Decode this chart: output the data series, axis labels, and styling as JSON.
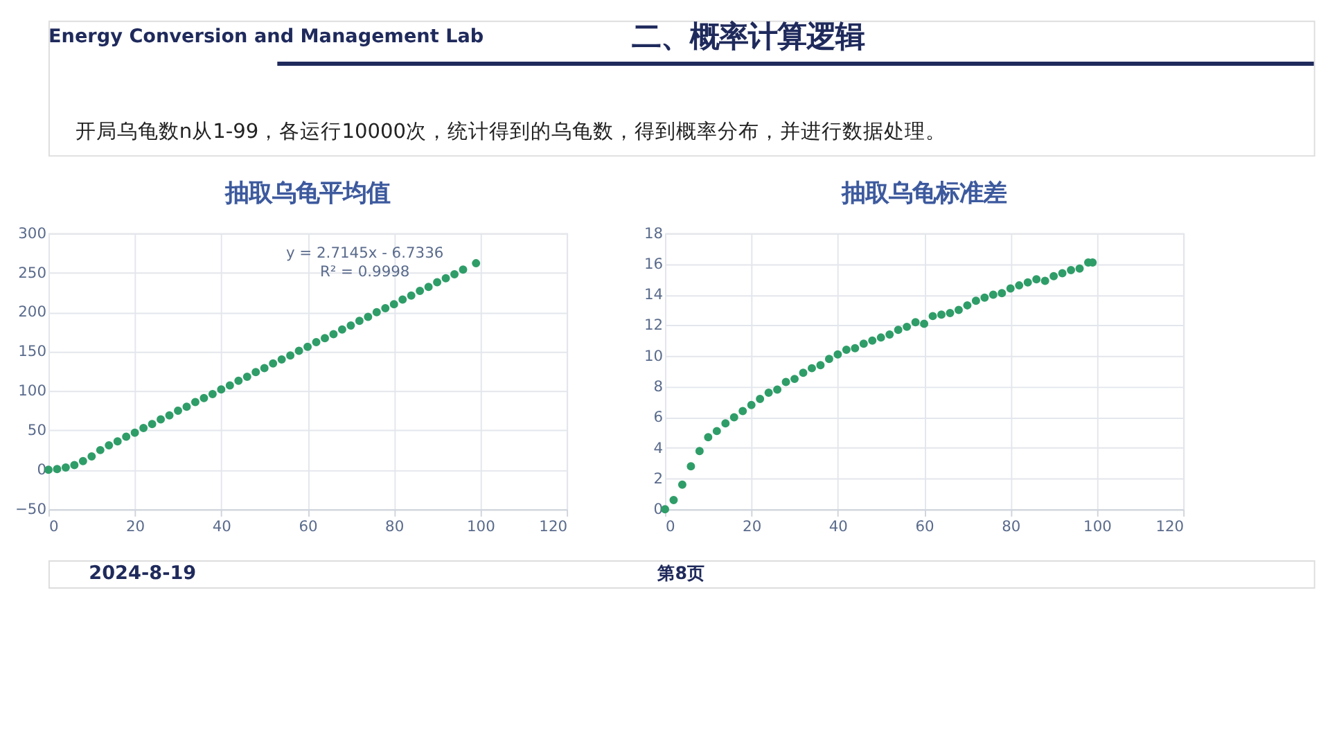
{
  "chart_data": [
    {
      "type": "scatter",
      "title": "抽取乌龟平均值",
      "annotations": [
        "Energy Conversion and Management Lab",
        "二、概率计算逻辑",
        "开局乌龟数n从1-99，各运行10000次，统计得到的乌龟数，得到概率分布，并进行数据处理。",
        "y = 2.7145x - 6.7336",
        "R² = 0.9998",
        "2024-8-19",
        "第8页"
      ],
      "x": [
        0,
        2,
        4,
        6,
        8,
        10,
        12,
        14,
        16,
        18,
        20,
        22,
        24,
        26,
        28,
        30,
        32,
        34,
        36,
        38,
        40,
        42,
        44,
        46,
        48,
        50,
        52,
        54,
        56,
        58,
        60,
        62,
        64,
        66,
        68,
        70,
        72,
        74,
        76,
        78,
        80,
        82,
        84,
        86,
        88,
        90,
        92,
        94,
        96,
        99
      ],
      "series": [
        {
          "color": "#2f9d68",
          "values": [
            0,
            1,
            3,
            6,
            11,
            17,
            25,
            31,
            36,
            42,
            47,
            53,
            58,
            64,
            69,
            75,
            80,
            86,
            91,
            96,
            102,
            107,
            113,
            118,
            124,
            129,
            135,
            140,
            145,
            151,
            156,
            162,
            167,
            172,
            178,
            183,
            189,
            194,
            200,
            205,
            210,
            216,
            221,
            227,
            232,
            238,
            243,
            248,
            254,
            262
          ]
        }
      ],
      "xlim": [
        0,
        120
      ],
      "xticks": [
        0,
        20,
        40,
        60,
        80,
        100,
        120
      ],
      "ylim": [
        -50,
        300
      ],
      "yticks": [
        -50,
        0,
        50,
        100,
        150,
        200,
        250,
        300
      ],
      "grid": true,
      "marker": "circle"
    },
    {
      "type": "scatter",
      "title": "抽取乌龟标准差",
      "x": [
        0,
        2,
        4,
        6,
        8,
        10,
        12,
        14,
        16,
        18,
        20,
        22,
        24,
        26,
        28,
        30,
        32,
        34,
        36,
        38,
        40,
        42,
        44,
        46,
        48,
        50,
        52,
        54,
        56,
        58,
        60,
        62,
        64,
        66,
        68,
        70,
        72,
        74,
        76,
        78,
        80,
        82,
        84,
        86,
        88,
        90,
        92,
        94,
        96,
        98,
        99
      ],
      "series": [
        {
          "color": "#2f9d68",
          "values": [
            0,
            0.6,
            1.6,
            2.8,
            3.8,
            4.7,
            5.1,
            5.6,
            6.0,
            6.4,
            6.8,
            7.2,
            7.6,
            7.8,
            8.3,
            8.5,
            8.9,
            9.2,
            9.4,
            9.8,
            10.1,
            10.4,
            10.5,
            10.8,
            11.0,
            11.2,
            11.4,
            11.7,
            11.9,
            12.2,
            12.1,
            12.6,
            12.7,
            12.8,
            13.0,
            13.3,
            13.6,
            13.8,
            14.0,
            14.1,
            14.4,
            14.6,
            14.8,
            15.0,
            14.9,
            15.2,
            15.4,
            15.6,
            15.7,
            16.1,
            16.1
          ]
        }
      ],
      "xlim": [
        0,
        120
      ],
      "xticks": [
        0,
        20,
        40,
        60,
        80,
        100,
        120
      ],
      "ylim": [
        0,
        18
      ],
      "yticks": [
        0,
        2,
        4,
        6,
        8,
        10,
        12,
        14,
        16,
        18
      ],
      "grid": true,
      "marker": "circle"
    }
  ]
}
